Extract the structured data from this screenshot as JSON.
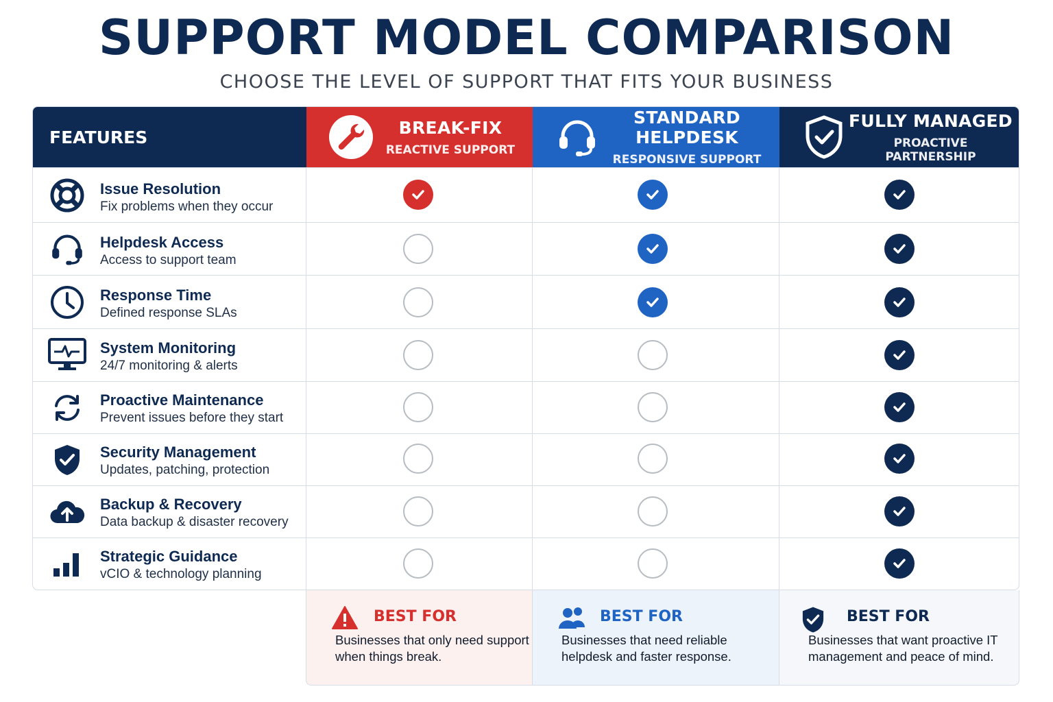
{
  "title": "SUPPORT MODEL COMPARISON",
  "subtitle": "CHOOSE THE LEVEL OF SUPPORT THAT FITS YOUR BUSINESS",
  "header": {
    "features_label": "FEATURES",
    "plans": [
      {
        "name": "BREAK-FIX",
        "subtitle": "REACTIVE SUPPORT",
        "icon": "wrench-icon",
        "color": "#d5302d"
      },
      {
        "name": "STANDARD HELPDESK",
        "subtitle": "RESPONSIVE SUPPORT",
        "icon": "headset-icon",
        "color": "#1f63c3"
      },
      {
        "name": "FULLY MANAGED",
        "subtitle": "PROACTIVE PARTNERSHIP",
        "icon": "shield-check-icon",
        "color": "#0e2a52"
      }
    ]
  },
  "features": [
    {
      "name": "Issue Resolution",
      "description": "Fix problems when they occur",
      "icon": "lifebuoy-icon",
      "included": [
        true,
        true,
        true
      ]
    },
    {
      "name": "Helpdesk Access",
      "description": "Access to support team",
      "icon": "headset-icon",
      "included": [
        false,
        true,
        true
      ]
    },
    {
      "name": "Response Time",
      "description": "Defined response SLAs",
      "icon": "clock-icon",
      "included": [
        false,
        true,
        true
      ]
    },
    {
      "name": "System Monitoring",
      "description": "24/7 monitoring & alerts",
      "icon": "monitor-pulse-icon",
      "included": [
        false,
        false,
        true
      ]
    },
    {
      "name": "Proactive Maintenance",
      "description": "Prevent issues before they start",
      "icon": "refresh-icon",
      "included": [
        false,
        false,
        true
      ]
    },
    {
      "name": "Security Management",
      "description": "Updates, patching, protection",
      "icon": "shield-check-icon",
      "included": [
        false,
        false,
        true
      ]
    },
    {
      "name": "Backup & Recovery",
      "description": "Data backup & disaster recovery",
      "icon": "cloud-upload-icon",
      "included": [
        false,
        false,
        true
      ]
    },
    {
      "name": "Strategic Guidance",
      "description": "vCIO & technology planning",
      "icon": "bar-chart-icon",
      "included": [
        false,
        false,
        true
      ]
    }
  ],
  "best_for": [
    {
      "title": "BEST FOR",
      "text": "Businesses that only need support when things break.",
      "icon": "warning-icon",
      "color": "#d5302d"
    },
    {
      "title": "BEST FOR",
      "text": "Businesses that need reliable helpdesk and faster response.",
      "icon": "users-icon",
      "color": "#1f63c3"
    },
    {
      "title": "BEST FOR",
      "text": "Businesses that want proactive IT management and peace of mind.",
      "icon": "shield-check-icon",
      "color": "#0e2a52"
    }
  ]
}
